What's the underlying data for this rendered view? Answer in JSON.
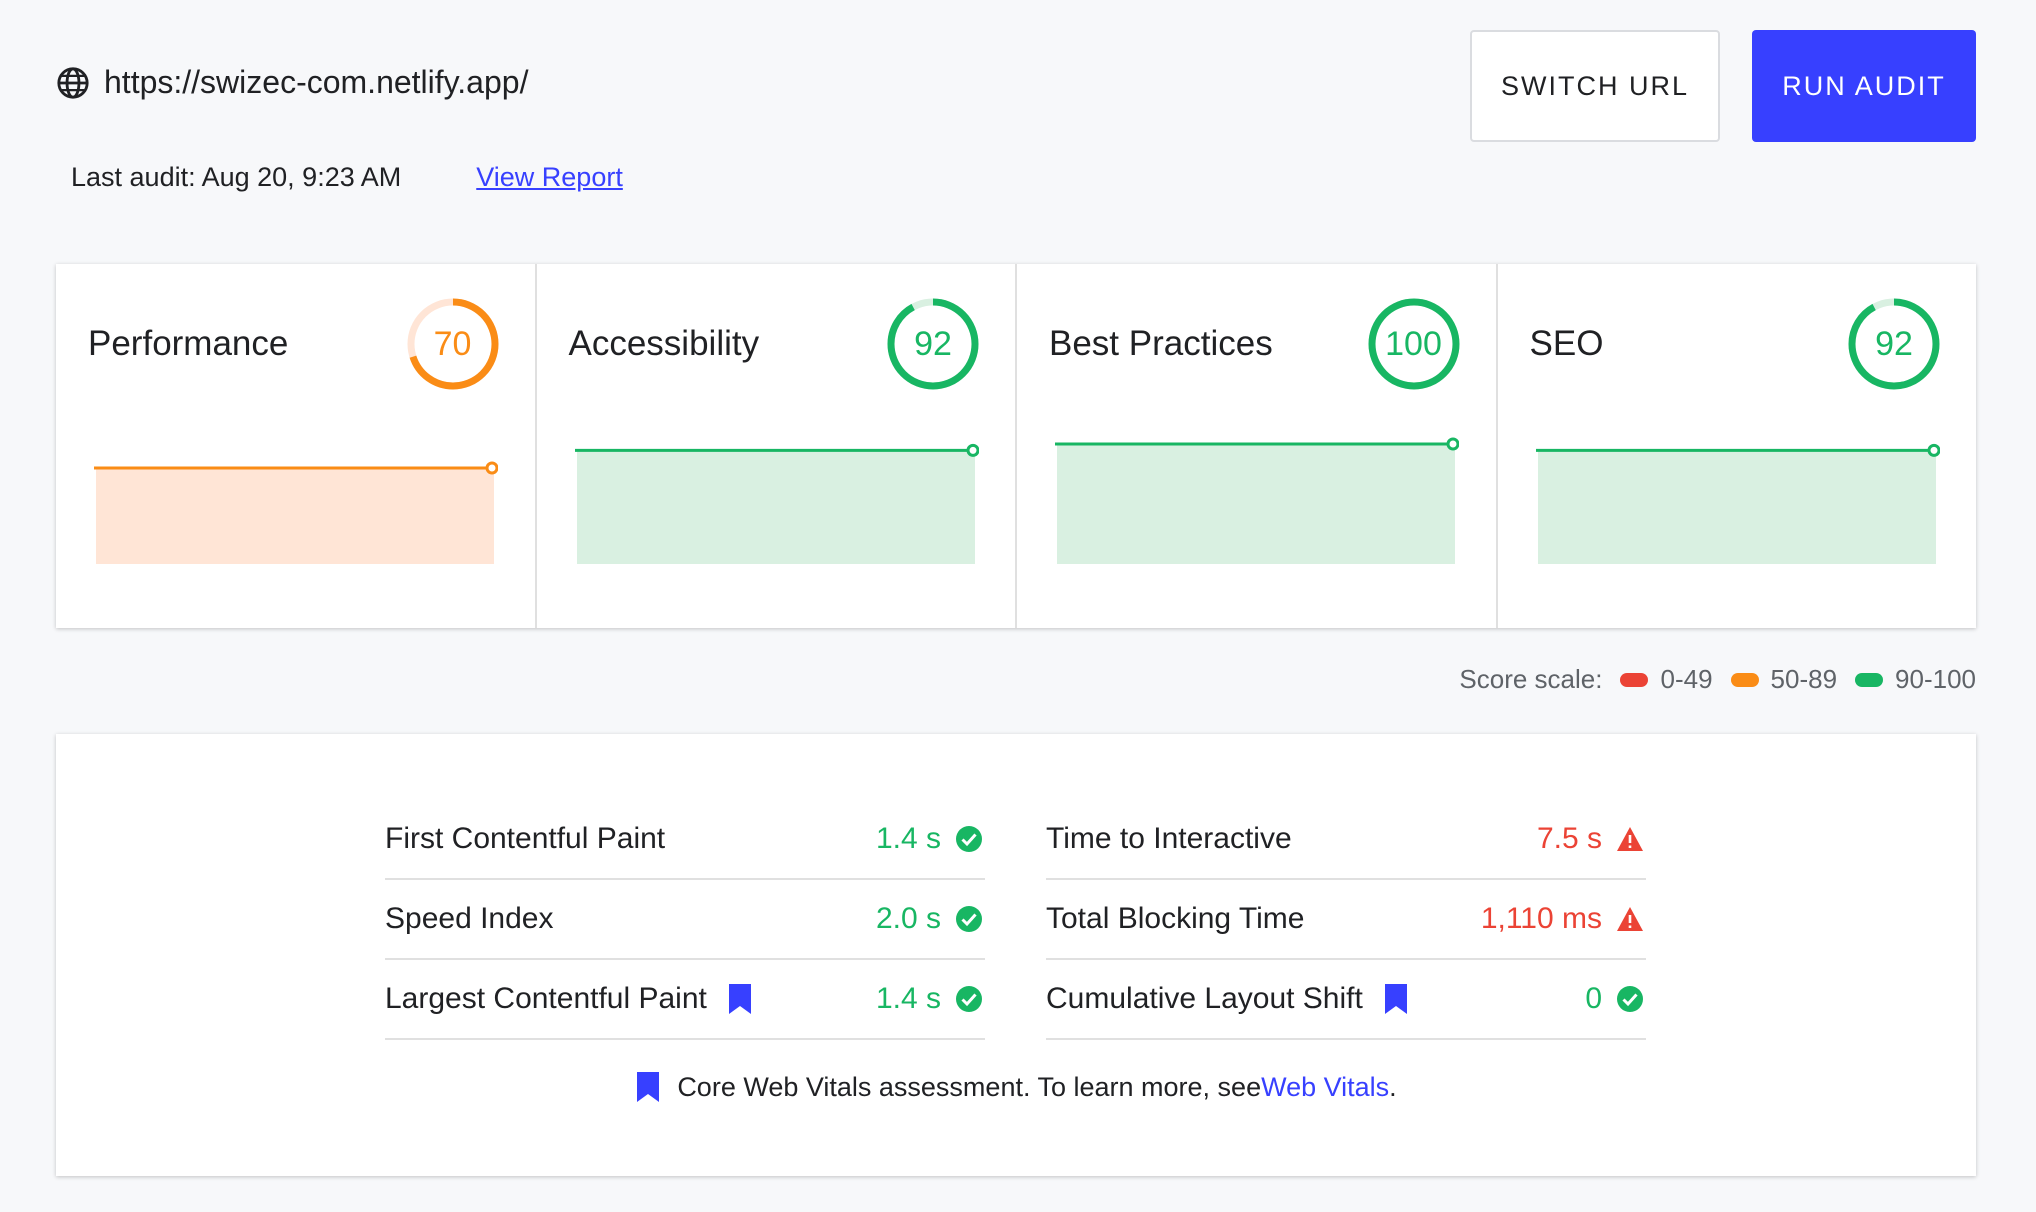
{
  "header": {
    "url": "https://swizec-com.netlify.app/",
    "last_audit": "Last audit: Aug 20, 9:23 AM",
    "view_report": "View Report",
    "switch_url": "SWITCH URL",
    "run_audit": "RUN AUDIT"
  },
  "cards": [
    {
      "title": "Performance",
      "score": "70",
      "score_value": 70,
      "color": "#fa8c16"
    },
    {
      "title": "Accessibility",
      "score": "92",
      "score_value": 92,
      "color": "#18b663"
    },
    {
      "title": "Best Practices",
      "score": "100",
      "score_value": 100,
      "color": "#18b663"
    },
    {
      "title": "SEO",
      "score": "92",
      "score_value": 92,
      "color": "#18b663"
    }
  ],
  "score_scale": {
    "label": "Score scale:",
    "ranges": [
      {
        "label": "0-49",
        "color": "#eb4335"
      },
      {
        "label": "50-89",
        "color": "#fa8c16"
      },
      {
        "label": "90-100",
        "color": "#18b663"
      }
    ]
  },
  "metrics": {
    "left": [
      {
        "name": "First Contentful Paint",
        "value": "1.4 s",
        "status": "good",
        "core_vital": false
      },
      {
        "name": "Speed Index",
        "value": "2.0 s",
        "status": "good",
        "core_vital": false
      },
      {
        "name": "Largest Contentful Paint",
        "value": "1.4 s",
        "status": "good",
        "core_vital": true
      }
    ],
    "right": [
      {
        "name": "Time to Interactive",
        "value": "7.5 s",
        "status": "bad",
        "core_vital": false
      },
      {
        "name": "Total Blocking Time",
        "value": "1,110 ms",
        "status": "bad",
        "core_vital": false
      },
      {
        "name": "Cumulative Layout Shift",
        "value": "0",
        "status": "good",
        "core_vital": true
      }
    ],
    "note_prefix": "Core Web Vitals assessment. To learn more, see ",
    "note_link": "Web Vitals",
    "note_suffix": "."
  }
}
